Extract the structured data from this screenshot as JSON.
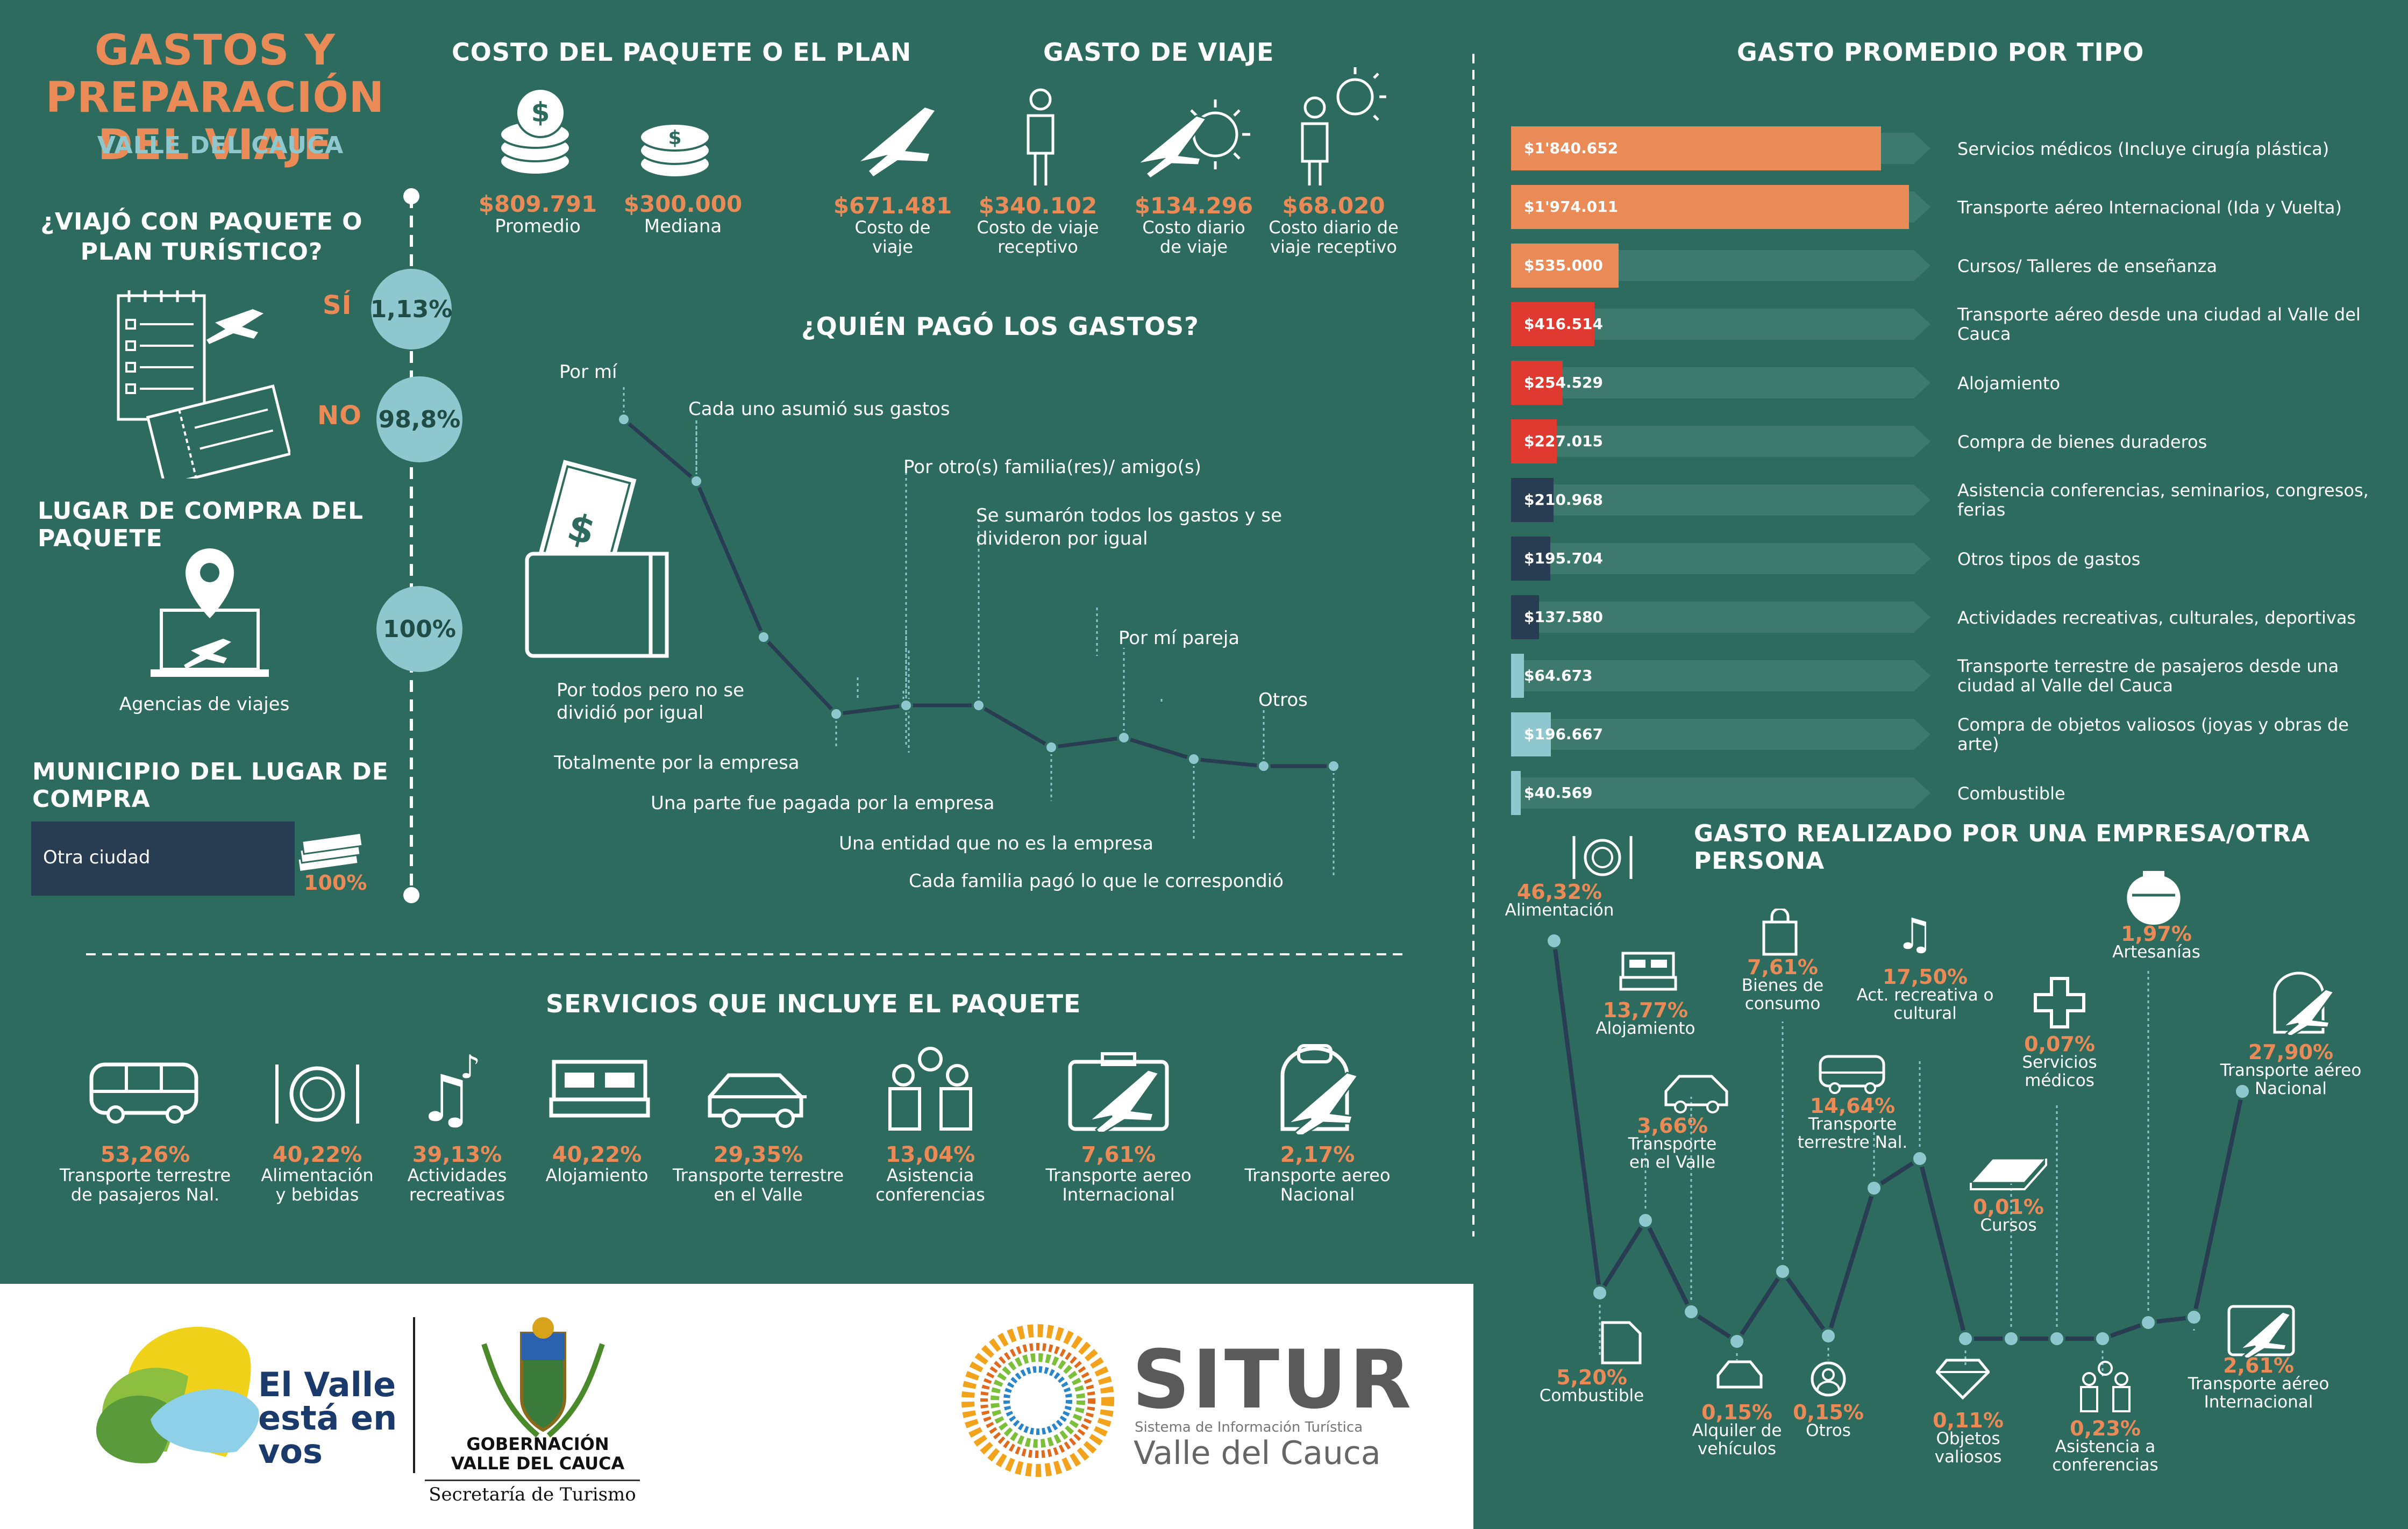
{
  "header": {
    "title_line1": "GASTOS Y PREPARACIÓN",
    "title_line2": "DEL VIAJE",
    "subtitle": "VALLE DEL CAUCA"
  },
  "package_question": {
    "title_line1": "¿VIAJÓ CON PAQUETE O",
    "title_line2": "PLAN TURÍSTICO?",
    "yes_label": "SÍ",
    "yes_value": "1,13%",
    "no_label": "NO",
    "no_value": "98,8%"
  },
  "purchase_place": {
    "title": "LUGAR DE COMPRA DEL PAQUETE",
    "value": "100%",
    "label": "Agencias de viajes"
  },
  "municipality": {
    "title": "MUNICIPIO DEL LUGAR DE COMPRA",
    "label": "Otra ciudad",
    "value": "100%"
  },
  "package_cost": {
    "title": "COSTO DEL PAQUETE O EL PLAN",
    "items": [
      {
        "value": "$809.791",
        "label": "Promedio"
      },
      {
        "value": "$300.000",
        "label": "Mediana"
      }
    ]
  },
  "travel_cost": {
    "title": "GASTO DE VIAJE",
    "items": [
      {
        "value": "$671.481",
        "label_line1": "Costo de",
        "label_line2": "viaje"
      },
      {
        "value": "$340.102",
        "label_line1": "Costo de viaje",
        "label_line2": "receptivo"
      },
      {
        "value": "$134.296",
        "label_line1": "Costo diario",
        "label_line2": "de viaje"
      },
      {
        "value": "$68.020",
        "label_line1": "Costo diario de",
        "label_line2": "viaje receptivo"
      }
    ]
  },
  "who_paid": {
    "title": "¿QUIÉN PAGÓ LOS GASTOS?",
    "labels": [
      "Por mí",
      "Cada uno asumió sus gastos",
      "Por todos pero no se",
      "dividió por igual",
      "Totalmente por la empresa",
      "Por otro(s) familia(res)/ amigo(s)",
      "Se sumarón todos los gastos y se",
      "divideron por igual",
      "Una parte fue pagada por la empresa",
      "Una entidad que no es la empresa",
      "Por mí pareja",
      "Cada familia pagó lo que le correspondió",
      "Otros"
    ]
  },
  "services": {
    "title": "SERVICIOS QUE INCLUYE EL PAQUETE",
    "items": [
      {
        "icon": "bus-icon",
        "value": "53,26%",
        "l1": "Transporte terrestre",
        "l2": "de pasajeros Nal."
      },
      {
        "icon": "plate-icon",
        "value": "40,22%",
        "l1": "Alimentación",
        "l2": "y bebidas"
      },
      {
        "icon": "music-icon",
        "value": "39,13%",
        "l1": "Actividades",
        "l2": "recreativas"
      },
      {
        "icon": "bed-icon",
        "value": "40,22%",
        "l1": "Alojamiento",
        "l2": ""
      },
      {
        "icon": "car-icon",
        "value": "29,35%",
        "l1": "Transporte terrestre",
        "l2": "en el Valle"
      },
      {
        "icon": "people-icon",
        "value": "13,04%",
        "l1": "Asistencia",
        "l2": "conferencias"
      },
      {
        "icon": "suitcase-plane-icon",
        "value": "7,61%",
        "l1": "Transporte aereo",
        "l2": "Internacional"
      },
      {
        "icon": "backpack-plane-icon",
        "value": "2,17%",
        "l1": "Transporte aereo",
        "l2": "Nacional"
      }
    ]
  },
  "avg_by_type": {
    "title": "GASTO PROMEDIO POR TIPO",
    "rows": [
      {
        "value": "$1'840.652",
        "label": "Servicios médicos (Incluye cirugía plástica)",
        "color": "#e98a57",
        "fraction": 0.93
      },
      {
        "value": "$1'974.011",
        "label": "Transporte aéreo Internacional (Ida y Vuelta)",
        "color": "#e98a57",
        "fraction": 1.0
      },
      {
        "value": "$535.000",
        "label": "Cursos/ Talleres de enseñanza",
        "color": "#e98a57",
        "fraction": 0.27
      },
      {
        "value": "$416.514",
        "label": "Transporte aéreo desde una ciudad al Valle del Cauca",
        "color": "#e0392f",
        "fraction": 0.21
      },
      {
        "value": "$254.529",
        "label": "Alojamiento",
        "color": "#e0392f",
        "fraction": 0.13
      },
      {
        "value": "$227.015",
        "label": "Compra de bienes duraderos",
        "color": "#e0392f",
        "fraction": 0.115
      },
      {
        "value": "$210.968",
        "label": "Asistencia conferencias, seminarios, congresos, ferias",
        "color": "#283d52",
        "fraction": 0.107
      },
      {
        "value": "$195.704",
        "label": "Otros tipos de gastos",
        "color": "#283d52",
        "fraction": 0.099
      },
      {
        "value": "$137.580",
        "label": "Actividades recreativas, culturales, deportivas",
        "color": "#283d52",
        "fraction": 0.07
      },
      {
        "value": "$64.673",
        "label": "Transporte terrestre de pasajeros desde una ciudad al Valle del Cauca",
        "color": "#8fc7cf",
        "fraction": 0.033
      },
      {
        "value": "$196.667",
        "label": "Compra de objetos valiosos (joyas y obras de arte)",
        "color": "#8fc7cf",
        "fraction": 0.1
      },
      {
        "value": "$40.569",
        "label": "Combustible",
        "color": "#8fc7cf",
        "fraction": 0.02
      }
    ]
  },
  "company_spend": {
    "title": "GASTO REALIZADO POR UNA EMPRESA/OTRA PERSONA",
    "items": [
      {
        "value": "46,32%",
        "label": "Alimentación"
      },
      {
        "value": "5,20%",
        "label": "Combustible"
      },
      {
        "value": "13,77%",
        "label": "Alojamiento"
      },
      {
        "value": "3,66%",
        "label": "Transporte en el Valle"
      },
      {
        "value": "0,15%",
        "label": "Alquiler de vehículos"
      },
      {
        "value": "0,15%",
        "label": "Otros"
      },
      {
        "value": "7,61%",
        "label": "Bienes de consumo"
      },
      {
        "value": "14,64%",
        "label": "Transporte terrestre Nal."
      },
      {
        "value": "17,50%",
        "label": "Act. recreativa o cultural"
      },
      {
        "value": "0,11%",
        "label": "Objetos valiosos"
      },
      {
        "value": "0,01%",
        "label": "Cursos"
      },
      {
        "value": "0,07%",
        "label": "Servicios médicos"
      },
      {
        "value": "0,23%",
        "label": "Asistencia a conferencias"
      },
      {
        "value": "1,97%",
        "label": "Artesanías"
      },
      {
        "value": "2,61%",
        "label": "Transporte aéreo Internacional"
      },
      {
        "value": "27,90%",
        "label": "Transporte aéreo Nacional"
      }
    ]
  },
  "footer": {
    "valle_l1": "El Valle",
    "valle_l2": "está en",
    "valle_l3": "vos",
    "gob_l1": "GOBERNACIÓN",
    "gob_l2": "VALLE DEL CAUCA",
    "gob_l3": "Secretaría de Turismo",
    "situr": "SITUR",
    "situr_sub1": "Sistema de Información Turística",
    "situr_sub2": "Valle del Cauca"
  },
  "colors": {
    "background": "#2d6b5f",
    "accent_orange": "#e98a57",
    "accent_sky": "#8fc7cf",
    "dark_navy": "#283d52",
    "red": "#e0392f"
  }
}
